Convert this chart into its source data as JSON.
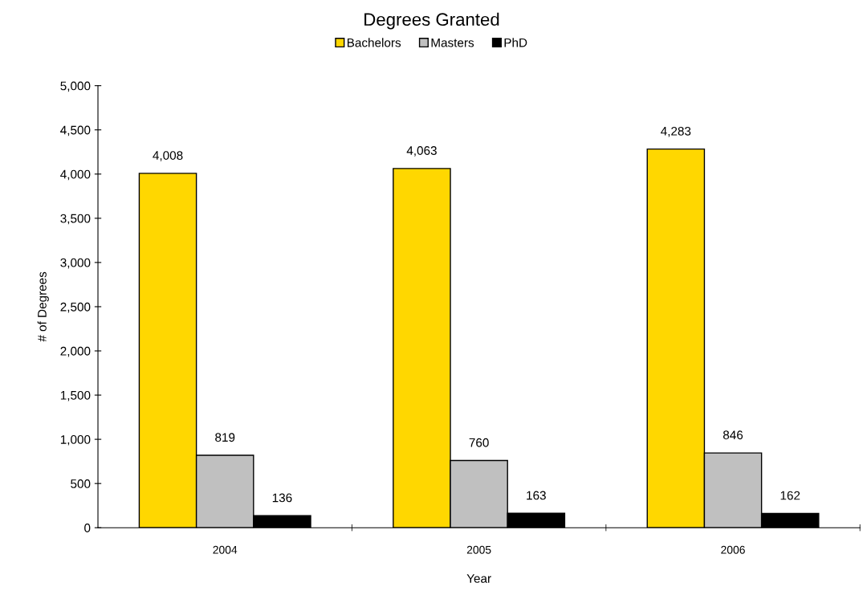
{
  "chart_data": {
    "type": "bar",
    "title": "Degrees Granted",
    "xlabel": "Year",
    "ylabel": "# of Degrees",
    "categories": [
      "2004",
      "2005",
      "2006"
    ],
    "series": [
      {
        "name": "Bachelors",
        "color": "#ffd700",
        "values": [
          4008,
          4063,
          4283
        ],
        "value_labels": [
          "4,008",
          "4,063",
          "4,283"
        ]
      },
      {
        "name": "Masters",
        "color": "#c0c0c0",
        "values": [
          819,
          760,
          846
        ],
        "value_labels": [
          "819",
          "760",
          "846"
        ]
      },
      {
        "name": "PhD",
        "color": "#000000",
        "values": [
          136,
          163,
          162
        ],
        "value_labels": [
          "136",
          "163",
          "162"
        ]
      }
    ],
    "ylim": [
      0,
      5000
    ],
    "yticks": [
      0,
      500,
      {
        "value": 1000,
        "label": "1,000"
      },
      {
        "value": 1500,
        "label": "1,500"
      },
      {
        "value": 2000,
        "label": "2,000"
      },
      {
        "value": 2500,
        "label": "2,500"
      },
      {
        "value": 3000,
        "label": "3,000"
      },
      {
        "value": 3500,
        "label": "3,500"
      },
      {
        "value": 4000,
        "label": "4,000"
      },
      {
        "value": 4500,
        "label": "4,500"
      },
      {
        "value": 5000,
        "label": "5,000"
      }
    ],
    "grid": false,
    "legend": "top"
  }
}
